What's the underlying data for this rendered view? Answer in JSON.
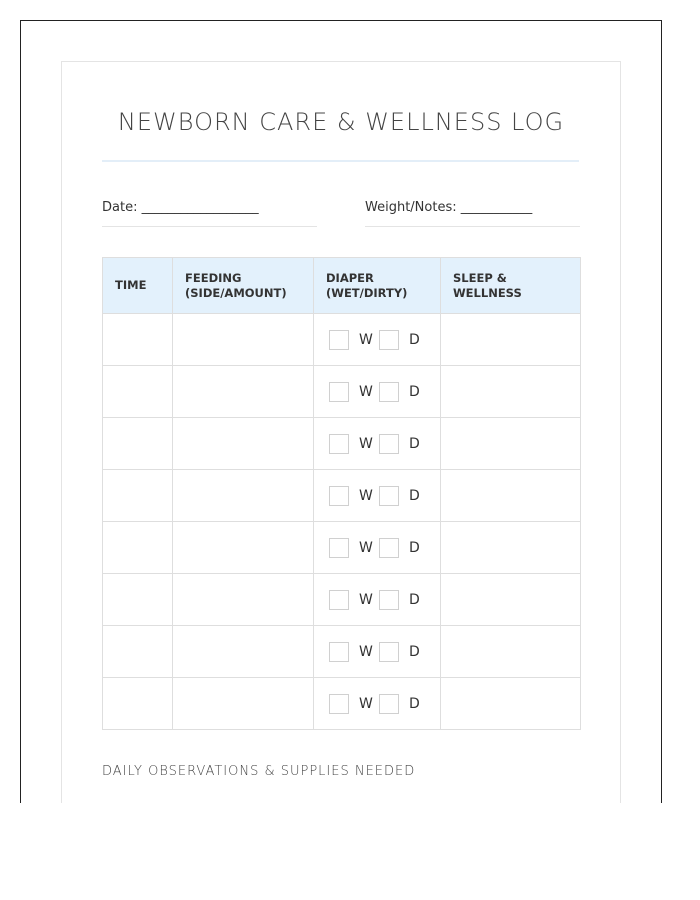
{
  "title": "NEWBORN CARE & WELLNESS LOG",
  "fields": {
    "date": "Date: __________________",
    "weight": "Weight/Notes: ___________"
  },
  "table": {
    "headers": [
      "TIME",
      "FEEDING (SIDE/AMOUNT)",
      "DIAPER (WET/DIRTY)",
      "SLEEP & WELLNESS"
    ],
    "diaper_labels": {
      "wet": "W",
      "dirty": "D"
    },
    "row_count": 8
  },
  "observations_heading": "DAILY OBSERVATIONS & SUPPLIES NEEDED",
  "colors": {
    "header_bg": "#e3f1fc",
    "rule": "#e3eef8"
  }
}
